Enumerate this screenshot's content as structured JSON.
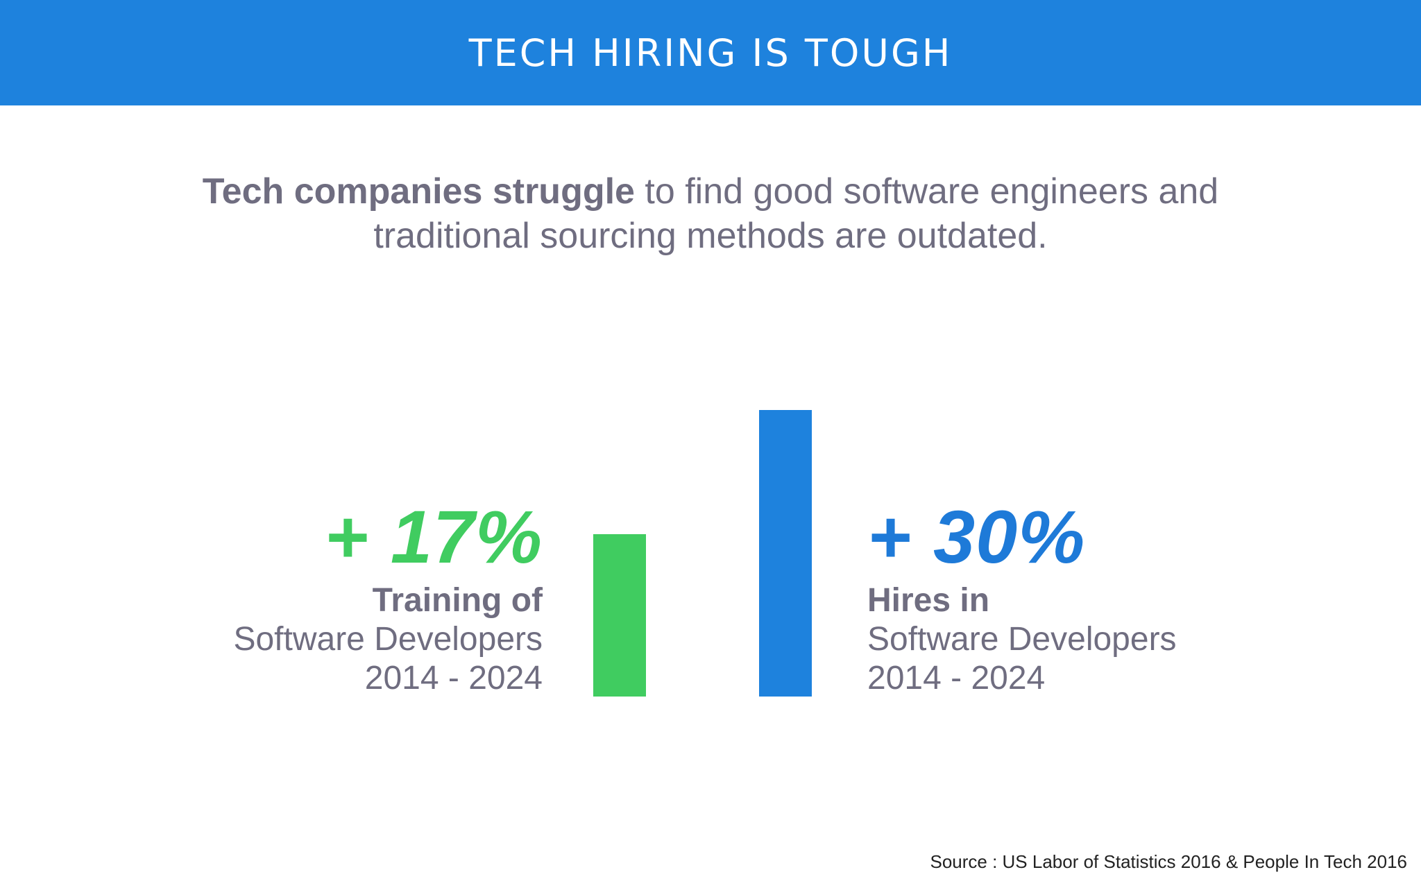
{
  "header": {
    "title": "TECH HIRING IS TOUGH"
  },
  "subtitle": {
    "bold": "Tech companies struggle",
    "line1_rest": " to find good software engineers and",
    "line2": "traditional sourcing methods are outdated."
  },
  "chart_data": {
    "type": "bar",
    "categories": [
      "Training of Software Developers 2014 - 2024",
      "Hires in Software Developers 2014 - 2024"
    ],
    "values": [
      17,
      30
    ],
    "data_labels": [
      "+ 17%",
      "+ 30%"
    ],
    "colors": [
      "#40cc60",
      "#1e82dd"
    ],
    "title": "",
    "xlabel": "",
    "ylabel": "",
    "ylim": [
      0,
      30
    ],
    "grid": false
  },
  "stats": {
    "left": {
      "value": "+ 17%",
      "label_bold": "Training of",
      "label_line2": "Software Developers",
      "label_line3": "2014 - 2024"
    },
    "right": {
      "value": "+ 30%",
      "label_bold": "Hires in",
      "label_line2": "Software Developers",
      "label_line3": "2014 - 2024"
    }
  },
  "source": "Source : US Labor of Statistics 2016 & People In Tech 2016"
}
